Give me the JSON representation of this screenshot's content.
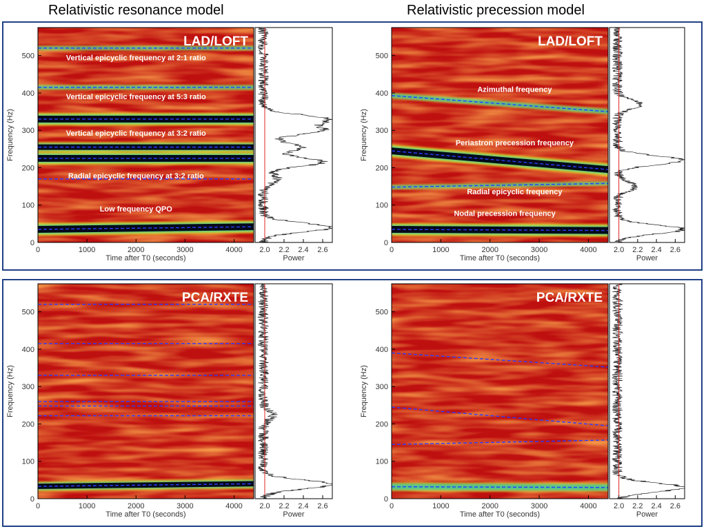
{
  "columns": [
    "Relativistic resonance model",
    "Relativistic precession model"
  ],
  "chart_data": [
    {
      "type": "heatmap",
      "panel": "resonance-lad",
      "instrument": "LAD/LOFT",
      "xlabel": "Time after T0 (seconds)",
      "ylabel": "Frequency (Hz)",
      "xlim": [
        0,
        4400
      ],
      "ylim": [
        0,
        575
      ],
      "xticks": [
        0,
        1000,
        2000,
        3000,
        4000
      ],
      "yticks": [
        0,
        100,
        200,
        300,
        400,
        500
      ],
      "tracks": [
        {
          "name": "Vertical epicyclic frequency at 2:1 ratio",
          "freq_start": 520,
          "freq_end": 520,
          "strength": 0.15
        },
        {
          "name": "Vertical epicyclic frequency at 5:3 ratio",
          "freq_start": 415,
          "freq_end": 415,
          "strength": 0.2
        },
        {
          "name": "",
          "freq_start": 330,
          "freq_end": 330,
          "strength": 1.0
        },
        {
          "name": "Vertical epicyclic frequency  at 3:2 ratio",
          "freq_start": 255,
          "freq_end": 255,
          "strength": 0.75
        },
        {
          "name": "",
          "freq_start": 225,
          "freq_end": 225,
          "strength": 1.0
        },
        {
          "name": "Radial epicyclic frequency at 3:2 ratio",
          "freq_start": 170,
          "freq_end": 170,
          "strength": 0.0
        },
        {
          "name": "Low frequency QPO",
          "freq_start": 35,
          "freq_end": 42,
          "strength": 1.0
        }
      ],
      "labels": [
        {
          "text": "Vertical epicyclic frequency at 2:1 ratio",
          "t": 2000,
          "f": 487
        },
        {
          "text": "Vertical epicyclic frequency at 5:3 ratio",
          "t": 2000,
          "f": 383
        },
        {
          "text": "Vertical epicyclic frequency  at 3:2 ratio",
          "t": 2000,
          "f": 286
        },
        {
          "text": "Radial epicyclic frequency at 3:2 ratio",
          "t": 2000,
          "f": 171
        },
        {
          "text": "Low frequency QPO",
          "t": 2000,
          "f": 83
        }
      ],
      "power": {
        "xlabel": "Power",
        "xlim": [
          1.9,
          2.7
        ],
        "xticks": [
          2.0,
          2.2,
          2.4,
          2.6
        ],
        "threshold": 2.0,
        "peaks": [
          {
            "f": 330,
            "p": 2.65
          },
          {
            "f": 300,
            "p": 2.6
          },
          {
            "f": 255,
            "p": 2.4
          },
          {
            "f": 215,
            "p": 2.62
          },
          {
            "f": 170,
            "p": 2.15
          },
          {
            "f": 40,
            "p": 2.7
          }
        ]
      }
    },
    {
      "type": "heatmap",
      "panel": "precession-lad",
      "instrument": "LAD/LOFT",
      "xlabel": "Time after T0 (seconds)",
      "ylabel": "Frequency (Hz)",
      "xlim": [
        0,
        4400
      ],
      "ylim": [
        0,
        575
      ],
      "xticks": [
        0,
        1000,
        2000,
        3000,
        4000
      ],
      "yticks": [
        0,
        100,
        200,
        300,
        400,
        500
      ],
      "tracks": [
        {
          "name": "Azimuthal frequency",
          "freq_start": 393,
          "freq_end": 350,
          "strength": 0.3
        },
        {
          "name": "Periastron precession frequency",
          "freq_start": 245,
          "freq_end": 195,
          "strength": 1.0
        },
        {
          "name": "Radial epicyclic frequency",
          "freq_start": 148,
          "freq_end": 158,
          "strength": 0.15
        },
        {
          "name": "Nodal precession frequency",
          "freq_start": 35,
          "freq_end": 32,
          "strength": 1.0
        }
      ],
      "labels": [
        {
          "text": "Azimuthal frequency",
          "t": 2500,
          "f": 403
        },
        {
          "text": "Periastron precession frequency",
          "t": 2500,
          "f": 260
        },
        {
          "text": "Radial epicyclic frequency",
          "t": 2500,
          "f": 129
        },
        {
          "text": "Nodal precession frequency",
          "t": 2300,
          "f": 71
        }
      ],
      "power": {
        "xlabel": "Power",
        "xlim": [
          1.9,
          2.7
        ],
        "xticks": [
          2.0,
          2.2,
          2.4,
          2.6
        ],
        "threshold": 2.0,
        "peaks": [
          {
            "f": 370,
            "p": 2.25
          },
          {
            "f": 220,
            "p": 2.7
          },
          {
            "f": 150,
            "p": 2.2
          },
          {
            "f": 35,
            "p": 2.7
          }
        ]
      }
    },
    {
      "type": "heatmap",
      "panel": "resonance-pca",
      "instrument": "PCA/RXTE",
      "xlabel": "Time after T0 (seconds)",
      "ylabel": "Frequency (Hz)",
      "xlim": [
        0,
        4400
      ],
      "ylim": [
        0,
        575
      ],
      "xticks": [
        0,
        1000,
        2000,
        3000,
        4000
      ],
      "yticks": [
        0,
        100,
        200,
        300,
        400,
        500
      ],
      "tracks": [
        {
          "name": "",
          "freq_start": 520,
          "freq_end": 520,
          "strength": 0.0
        },
        {
          "name": "",
          "freq_start": 415,
          "freq_end": 415,
          "strength": 0.0
        },
        {
          "name": "",
          "freq_start": 330,
          "freq_end": 330,
          "strength": 0.0
        },
        {
          "name": "",
          "freq_start": 260,
          "freq_end": 260,
          "strength": 0.0
        },
        {
          "name": "",
          "freq_start": 248,
          "freq_end": 248,
          "strength": 0.0
        },
        {
          "name": "",
          "freq_start": 222,
          "freq_end": 222,
          "strength": 0.0
        },
        {
          "name": "",
          "freq_start": 33,
          "freq_end": 40,
          "strength": 0.7
        }
      ],
      "labels": [],
      "power": {
        "xlabel": "Power",
        "xlim": [
          1.9,
          2.7
        ],
        "xticks": [
          2.0,
          2.2,
          2.4,
          2.6
        ],
        "threshold": 2.0,
        "peaks": [
          {
            "f": 222,
            "p": 2.1
          },
          {
            "f": 38,
            "p": 2.7
          }
        ]
      }
    },
    {
      "type": "heatmap",
      "panel": "precession-pca",
      "instrument": "PCA/RXTE",
      "xlabel": "Time after T0 (seconds)",
      "ylabel": "Frequency (Hz)",
      "xlim": [
        0,
        4400
      ],
      "ylim": [
        0,
        575
      ],
      "xticks": [
        0,
        1000,
        2000,
        3000,
        4000
      ],
      "yticks": [
        0,
        100,
        200,
        300,
        400,
        500
      ],
      "tracks": [
        {
          "name": "",
          "freq_start": 390,
          "freq_end": 352,
          "strength": 0.0
        },
        {
          "name": "",
          "freq_start": 245,
          "freq_end": 195,
          "strength": 0.0
        },
        {
          "name": "",
          "freq_start": 145,
          "freq_end": 157,
          "strength": 0.0
        },
        {
          "name": "",
          "freq_start": 32,
          "freq_end": 30,
          "strength": 0.6
        }
      ],
      "labels": [],
      "power": {
        "xlabel": "Power",
        "xlim": [
          1.9,
          2.7
        ],
        "xticks": [
          2.0,
          2.2,
          2.4,
          2.6
        ],
        "threshold": 2.0,
        "peaks": [
          {
            "f": 30,
            "p": 2.7
          }
        ]
      }
    }
  ]
}
